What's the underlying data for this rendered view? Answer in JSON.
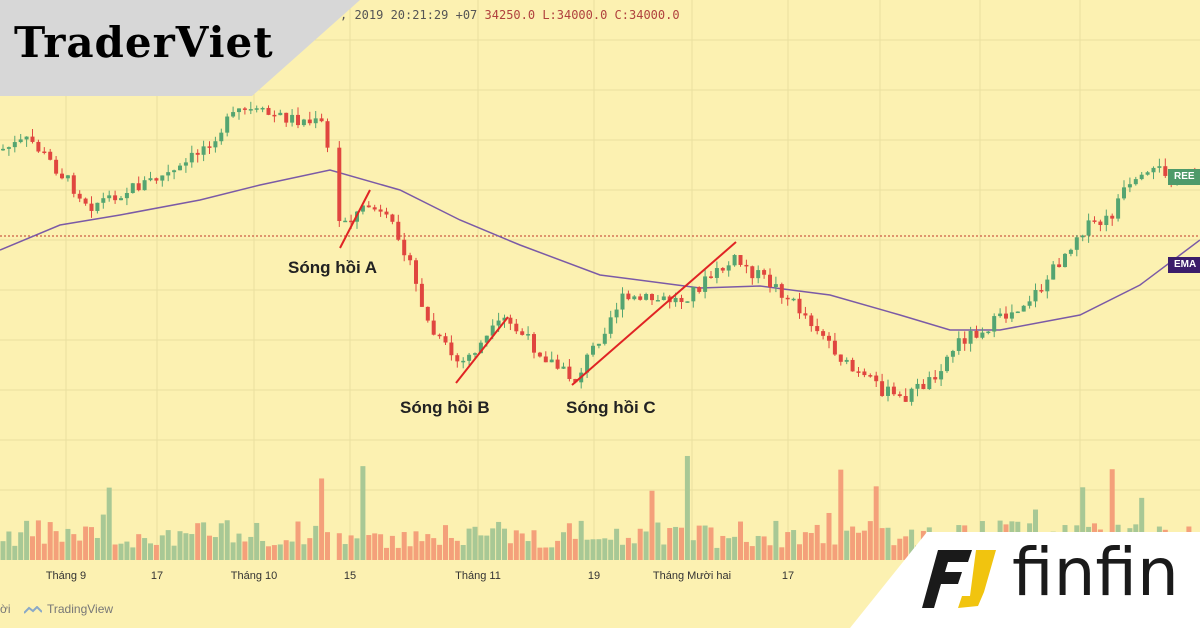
{
  "header": {
    "datetime": ", 2019 20:21:29 +07",
    "ohlc": "34250.0 L:34000.0 C:34000.0"
  },
  "brand": {
    "logo_text": "TraderViet"
  },
  "partner": {
    "logo_text": "finfin"
  },
  "footer": {
    "cut_text": "ời",
    "tradingview": "TradingView"
  },
  "price_tags": {
    "ree": "REE",
    "ema": "EMA"
  },
  "colors": {
    "background": "#fcf1b1",
    "up": "#54a571",
    "down": "#e0463f",
    "volume_up": "#a8c895",
    "volume_down": "#f4a07a",
    "ema": "#7b5aa6",
    "wave_line": "#e02424",
    "reference_line": "#c0392b"
  },
  "chart_data": {
    "type": "candlestick",
    "x_ticks": [
      "Tháng 9",
      "17",
      "Tháng 10",
      "15",
      "Tháng 11",
      "19",
      "Tháng Mười hai",
      "17"
    ],
    "series_labels": [
      "REE",
      "EMA"
    ],
    "annotations": [
      {
        "text": "Sóng hồi A",
        "from_tick": "Tháng 10",
        "to_tick": "15"
      },
      {
        "text": "Sóng hồi B",
        "from_tick": "Tháng 11",
        "to_tick": "19"
      },
      {
        "text": "Sóng hồi C",
        "from_tick": "19",
        "to_tick": "Tháng Mười hai"
      }
    ],
    "grid": true,
    "legend": "none"
  }
}
